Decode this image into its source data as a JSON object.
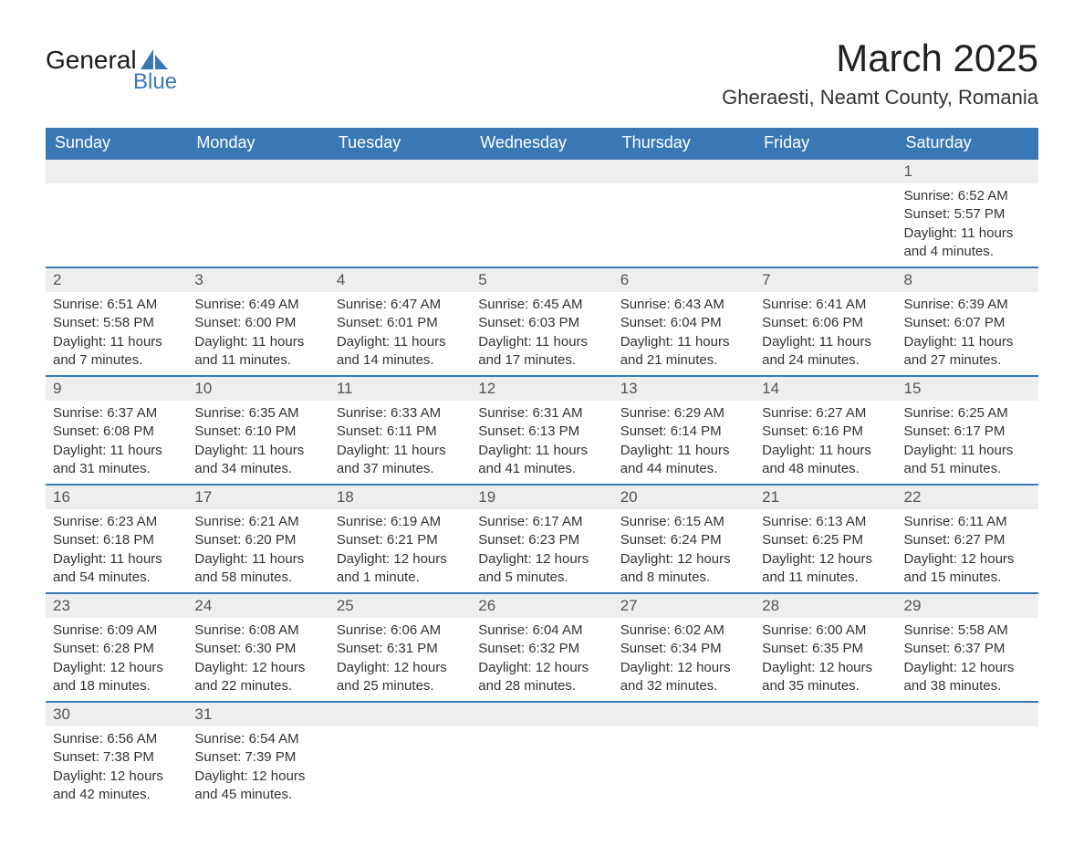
{
  "logo": {
    "word1": "General",
    "word2": "Blue",
    "sail_color": "#3a78b5"
  },
  "title": "March 2025",
  "location": "Gheraesti, Neamt County, Romania",
  "theme": {
    "header_bg": "#3a78b5",
    "header_fg": "#ffffff",
    "row_border": "#3a78b5",
    "daynum_bg": "#eeeeee",
    "text_color": "#333333"
  },
  "weekdays": [
    "Sunday",
    "Monday",
    "Tuesday",
    "Wednesday",
    "Thursday",
    "Friday",
    "Saturday"
  ],
  "weeks": [
    [
      null,
      null,
      null,
      null,
      null,
      null,
      {
        "n": "1",
        "sunrise": "Sunrise: 6:52 AM",
        "sunset": "Sunset: 5:57 PM",
        "daylight": "Daylight: 11 hours and 4 minutes."
      }
    ],
    [
      {
        "n": "2",
        "sunrise": "Sunrise: 6:51 AM",
        "sunset": "Sunset: 5:58 PM",
        "daylight": "Daylight: 11 hours and 7 minutes."
      },
      {
        "n": "3",
        "sunrise": "Sunrise: 6:49 AM",
        "sunset": "Sunset: 6:00 PM",
        "daylight": "Daylight: 11 hours and 11 minutes."
      },
      {
        "n": "4",
        "sunrise": "Sunrise: 6:47 AM",
        "sunset": "Sunset: 6:01 PM",
        "daylight": "Daylight: 11 hours and 14 minutes."
      },
      {
        "n": "5",
        "sunrise": "Sunrise: 6:45 AM",
        "sunset": "Sunset: 6:03 PM",
        "daylight": "Daylight: 11 hours and 17 minutes."
      },
      {
        "n": "6",
        "sunrise": "Sunrise: 6:43 AM",
        "sunset": "Sunset: 6:04 PM",
        "daylight": "Daylight: 11 hours and 21 minutes."
      },
      {
        "n": "7",
        "sunrise": "Sunrise: 6:41 AM",
        "sunset": "Sunset: 6:06 PM",
        "daylight": "Daylight: 11 hours and 24 minutes."
      },
      {
        "n": "8",
        "sunrise": "Sunrise: 6:39 AM",
        "sunset": "Sunset: 6:07 PM",
        "daylight": "Daylight: 11 hours and 27 minutes."
      }
    ],
    [
      {
        "n": "9",
        "sunrise": "Sunrise: 6:37 AM",
        "sunset": "Sunset: 6:08 PM",
        "daylight": "Daylight: 11 hours and 31 minutes."
      },
      {
        "n": "10",
        "sunrise": "Sunrise: 6:35 AM",
        "sunset": "Sunset: 6:10 PM",
        "daylight": "Daylight: 11 hours and 34 minutes."
      },
      {
        "n": "11",
        "sunrise": "Sunrise: 6:33 AM",
        "sunset": "Sunset: 6:11 PM",
        "daylight": "Daylight: 11 hours and 37 minutes."
      },
      {
        "n": "12",
        "sunrise": "Sunrise: 6:31 AM",
        "sunset": "Sunset: 6:13 PM",
        "daylight": "Daylight: 11 hours and 41 minutes."
      },
      {
        "n": "13",
        "sunrise": "Sunrise: 6:29 AM",
        "sunset": "Sunset: 6:14 PM",
        "daylight": "Daylight: 11 hours and 44 minutes."
      },
      {
        "n": "14",
        "sunrise": "Sunrise: 6:27 AM",
        "sunset": "Sunset: 6:16 PM",
        "daylight": "Daylight: 11 hours and 48 minutes."
      },
      {
        "n": "15",
        "sunrise": "Sunrise: 6:25 AM",
        "sunset": "Sunset: 6:17 PM",
        "daylight": "Daylight: 11 hours and 51 minutes."
      }
    ],
    [
      {
        "n": "16",
        "sunrise": "Sunrise: 6:23 AM",
        "sunset": "Sunset: 6:18 PM",
        "daylight": "Daylight: 11 hours and 54 minutes."
      },
      {
        "n": "17",
        "sunrise": "Sunrise: 6:21 AM",
        "sunset": "Sunset: 6:20 PM",
        "daylight": "Daylight: 11 hours and 58 minutes."
      },
      {
        "n": "18",
        "sunrise": "Sunrise: 6:19 AM",
        "sunset": "Sunset: 6:21 PM",
        "daylight": "Daylight: 12 hours and 1 minute."
      },
      {
        "n": "19",
        "sunrise": "Sunrise: 6:17 AM",
        "sunset": "Sunset: 6:23 PM",
        "daylight": "Daylight: 12 hours and 5 minutes."
      },
      {
        "n": "20",
        "sunrise": "Sunrise: 6:15 AM",
        "sunset": "Sunset: 6:24 PM",
        "daylight": "Daylight: 12 hours and 8 minutes."
      },
      {
        "n": "21",
        "sunrise": "Sunrise: 6:13 AM",
        "sunset": "Sunset: 6:25 PM",
        "daylight": "Daylight: 12 hours and 11 minutes."
      },
      {
        "n": "22",
        "sunrise": "Sunrise: 6:11 AM",
        "sunset": "Sunset: 6:27 PM",
        "daylight": "Daylight: 12 hours and 15 minutes."
      }
    ],
    [
      {
        "n": "23",
        "sunrise": "Sunrise: 6:09 AM",
        "sunset": "Sunset: 6:28 PM",
        "daylight": "Daylight: 12 hours and 18 minutes."
      },
      {
        "n": "24",
        "sunrise": "Sunrise: 6:08 AM",
        "sunset": "Sunset: 6:30 PM",
        "daylight": "Daylight: 12 hours and 22 minutes."
      },
      {
        "n": "25",
        "sunrise": "Sunrise: 6:06 AM",
        "sunset": "Sunset: 6:31 PM",
        "daylight": "Daylight: 12 hours and 25 minutes."
      },
      {
        "n": "26",
        "sunrise": "Sunrise: 6:04 AM",
        "sunset": "Sunset: 6:32 PM",
        "daylight": "Daylight: 12 hours and 28 minutes."
      },
      {
        "n": "27",
        "sunrise": "Sunrise: 6:02 AM",
        "sunset": "Sunset: 6:34 PM",
        "daylight": "Daylight: 12 hours and 32 minutes."
      },
      {
        "n": "28",
        "sunrise": "Sunrise: 6:00 AM",
        "sunset": "Sunset: 6:35 PM",
        "daylight": "Daylight: 12 hours and 35 minutes."
      },
      {
        "n": "29",
        "sunrise": "Sunrise: 5:58 AM",
        "sunset": "Sunset: 6:37 PM",
        "daylight": "Daylight: 12 hours and 38 minutes."
      }
    ],
    [
      {
        "n": "30",
        "sunrise": "Sunrise: 6:56 AM",
        "sunset": "Sunset: 7:38 PM",
        "daylight": "Daylight: 12 hours and 42 minutes."
      },
      {
        "n": "31",
        "sunrise": "Sunrise: 6:54 AM",
        "sunset": "Sunset: 7:39 PM",
        "daylight": "Daylight: 12 hours and 45 minutes."
      },
      null,
      null,
      null,
      null,
      null
    ]
  ]
}
